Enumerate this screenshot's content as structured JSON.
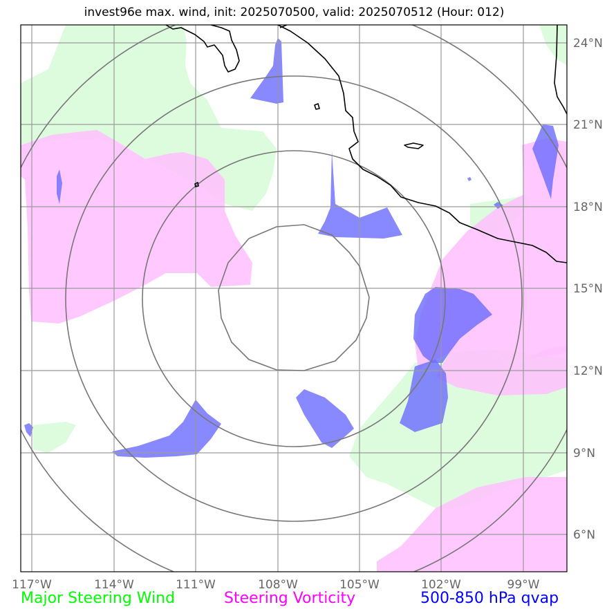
{
  "title": "invest96e max. wind, init: 2025070500, valid: 2025070512 (Hour: 012)",
  "lon_labels": [
    "117°W",
    "114°W",
    "111°W",
    "108°W",
    "105°W",
    "102°W",
    "99°W"
  ],
  "lat_labels": [
    "24°N",
    "21°N",
    "18°N",
    "15°N",
    "12°N",
    "9°N",
    "6°N"
  ],
  "legend": [
    {
      "label": "Major Steering Wind",
      "color": "#00ff00"
    },
    {
      "label": "Steering Vorticity",
      "color": "#ff00ff"
    },
    {
      "label": "500-850 hPa qvap",
      "color": "#0000ff"
    }
  ],
  "layer_colors": {
    "steering_wind": "#ddfcdd",
    "steering_vorticity": "#ffc0ff",
    "qvap": "#7f7fff",
    "range_rings": "#808080",
    "gridlines": "#9a9a9a",
    "coastline": "#000000"
  }
}
